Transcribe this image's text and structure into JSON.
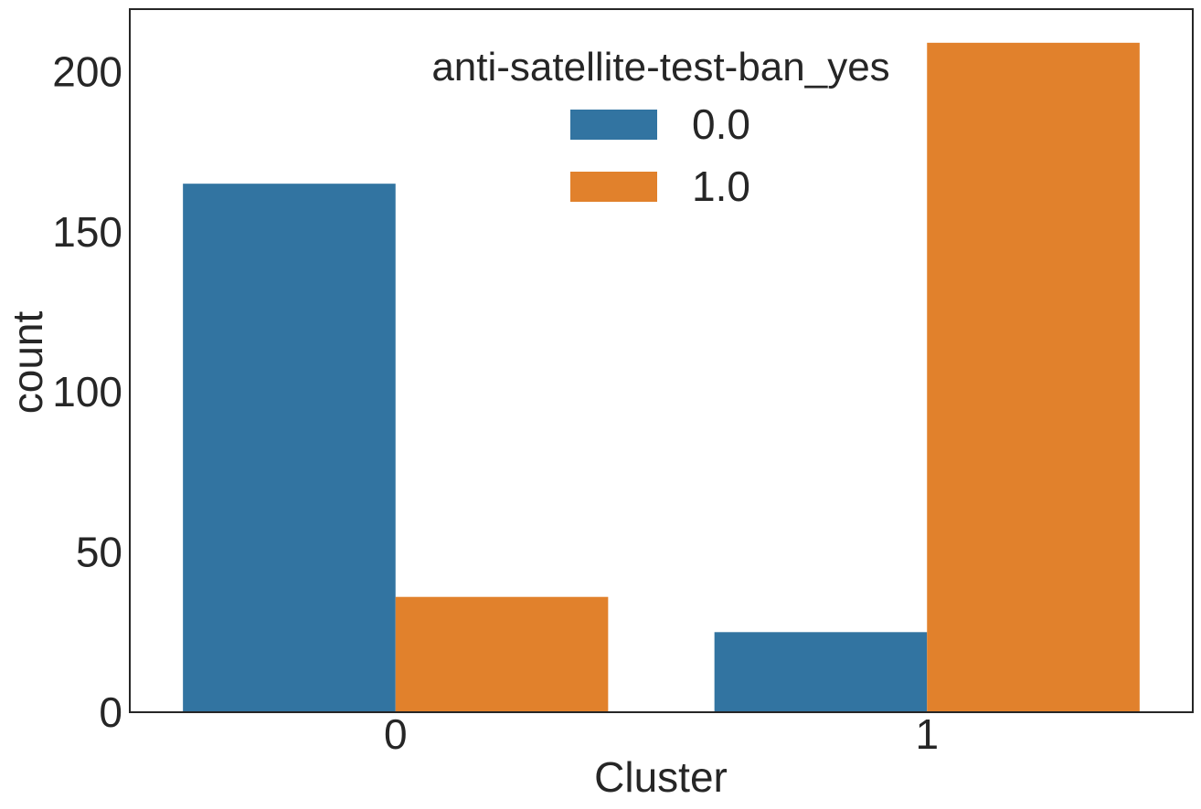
{
  "chart_data": {
    "type": "bar",
    "categories": [
      "0",
      "1"
    ],
    "series": [
      {
        "name": "0.0",
        "values": [
          165,
          25
        ],
        "color": "#3274a1"
      },
      {
        "name": "1.0",
        "values": [
          36,
          209
        ],
        "color": "#e1812c"
      }
    ],
    "xlabel": "Cluster",
    "ylabel": "count",
    "ylim": [
      0,
      219.5
    ],
    "yticks": [
      0,
      50,
      100,
      150,
      200
    ],
    "legend": {
      "title": "anti-satellite-test-ban_yes",
      "placement": "upper-center"
    },
    "grid": false
  }
}
